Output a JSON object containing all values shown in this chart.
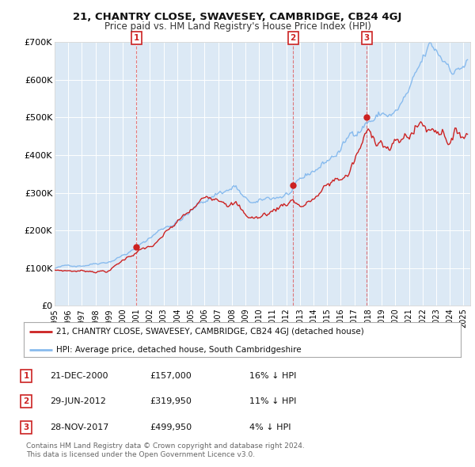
{
  "title": "21, CHANTRY CLOSE, SWAVESEY, CAMBRIDGE, CB24 4GJ",
  "subtitle": "Price paid vs. HM Land Registry's House Price Index (HPI)",
  "ylim": [
    0,
    700000
  ],
  "yticks": [
    0,
    100000,
    200000,
    300000,
    400000,
    500000,
    600000,
    700000
  ],
  "ytick_labels": [
    "£0",
    "£100K",
    "£200K",
    "£300K",
    "£400K",
    "£500K",
    "£600K",
    "£700K"
  ],
  "xlim_start": 1995.0,
  "xlim_end": 2025.5,
  "background_color": "#ffffff",
  "plot_bg_color": "#dce9f5",
  "grid_color": "#ffffff",
  "red_line_color": "#cc2222",
  "blue_line_color": "#88bbee",
  "sale_marker_color": "#cc2222",
  "sale_vline_color": "#dd4444",
  "transactions": [
    {
      "num": 1,
      "date": "21-DEC-2000",
      "year": 2001.0,
      "price": 157000,
      "pct": "16%",
      "dir": "↓"
    },
    {
      "num": 2,
      "date": "29-JUN-2012",
      "year": 2012.5,
      "price": 319950,
      "pct": "11%",
      "dir": "↓"
    },
    {
      "num": 3,
      "date": "28-NOV-2017",
      "year": 2017.9,
      "price": 499950,
      "pct": "4%",
      "dir": "↓"
    }
  ],
  "legend_red_label": "21, CHANTRY CLOSE, SWAVESEY, CAMBRIDGE, CB24 4GJ (detached house)",
  "legend_blue_label": "HPI: Average price, detached house, South Cambridgeshire",
  "table_rows": [
    [
      "1",
      "21-DEC-2000",
      "£157,000",
      "16% ↓ HPI"
    ],
    [
      "2",
      "29-JUN-2012",
      "£319,950",
      "11% ↓ HPI"
    ],
    [
      "3",
      "28-NOV-2017",
      "£499,950",
      "4% ↓ HPI"
    ]
  ],
  "footer_line1": "Contains HM Land Registry data © Crown copyright and database right 2024.",
  "footer_line2": "This data is licensed under the Open Government Licence v3.0."
}
